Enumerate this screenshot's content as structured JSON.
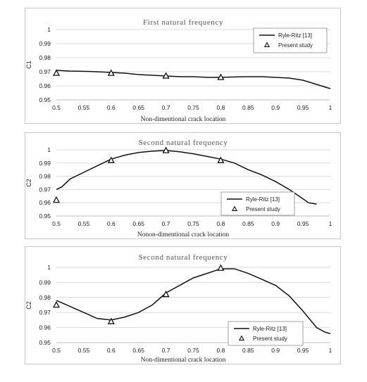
{
  "chart_data": [
    {
      "type": "line",
      "title": "First natural frequency",
      "xlabel": "Non-dimentional crack location",
      "ylabel": "C1",
      "xlim": [
        0.5,
        1
      ],
      "ylim": [
        0.95,
        1
      ],
      "xticks": [
        "0.5",
        "0.55",
        "0.6",
        "0.65",
        "0.7",
        "0.75",
        "0.8",
        "0.85",
        "0.9",
        "0.95",
        "1"
      ],
      "yticks": [
        "0.95",
        "0.96",
        "0.97",
        "0.98",
        "0.99",
        "1"
      ],
      "grid": "horizontal",
      "legend_position": "top-right",
      "series": [
        {
          "name": "Ryle-Ritz [13]",
          "style": "line",
          "x": [
            0.5,
            0.525,
            0.55,
            0.575,
            0.6,
            0.625,
            0.65,
            0.675,
            0.7,
            0.725,
            0.75,
            0.775,
            0.8,
            0.825,
            0.85,
            0.875,
            0.9,
            0.925,
            0.95,
            0.975,
            1.0
          ],
          "y": [
            0.971,
            0.9705,
            0.9703,
            0.97,
            0.9695,
            0.969,
            0.968,
            0.9675,
            0.967,
            0.9665,
            0.9665,
            0.966,
            0.966,
            0.9663,
            0.9665,
            0.9665,
            0.966,
            0.9655,
            0.964,
            0.961,
            0.958
          ]
        },
        {
          "name": "Present study",
          "style": "triangle-marker",
          "x": [
            0.5,
            0.6,
            0.7,
            0.8
          ],
          "y": [
            0.969,
            0.969,
            0.967,
            0.966
          ]
        }
      ]
    },
    {
      "type": "line",
      "title": "Second natural frequency",
      "xlabel": "Nonon-dimentional crack location",
      "ylabel": "C2",
      "xlim": [
        0.5,
        1
      ],
      "ylim": [
        0.95,
        1
      ],
      "xticks": [
        "0.5",
        "0.55",
        "0.6",
        "0.65",
        "0.7",
        "0.75",
        "0.8",
        "0.85",
        "0.9",
        "0.95",
        "1"
      ],
      "yticks": [
        "0.95",
        "0.96",
        "0.97",
        "0.98",
        "0.99",
        "1"
      ],
      "grid": "horizontal",
      "legend_position": "bottom-right",
      "series": [
        {
          "name": "Ryle-Ritz [13]",
          "style": "line",
          "x": [
            0.5,
            0.51,
            0.525,
            0.55,
            0.575,
            0.6,
            0.625,
            0.65,
            0.675,
            0.7,
            0.725,
            0.75,
            0.775,
            0.8,
            0.825,
            0.85,
            0.875,
            0.9,
            0.925,
            0.95,
            0.96,
            0.975
          ],
          "y": [
            0.97,
            0.972,
            0.978,
            0.983,
            0.988,
            0.993,
            0.996,
            0.998,
            0.999,
            0.9995,
            0.9985,
            0.997,
            0.995,
            0.993,
            0.99,
            0.985,
            0.981,
            0.976,
            0.97,
            0.963,
            0.96,
            0.959
          ]
        },
        {
          "name": "Present study",
          "style": "triangle-marker",
          "x": [
            0.5,
            0.6,
            0.7,
            0.8
          ],
          "y": [
            0.962,
            0.992,
            0.9995,
            0.992
          ]
        }
      ]
    },
    {
      "type": "line",
      "title": "Second natural frequency",
      "xlabel": "Non-dimentional crack location",
      "ylabel": "C2",
      "xlim": [
        0.5,
        1
      ],
      "ylim": [
        0.95,
        1
      ],
      "xticks": [
        "0.5",
        "0.55",
        "0.6",
        "0.65",
        "0.7",
        "0.75",
        "0.8",
        "0.85",
        "0.9",
        "0.95",
        "1"
      ],
      "yticks": [
        "0.95",
        "0.96",
        "0.97",
        "0.98",
        "0.99",
        "1"
      ],
      "grid": "horizontal",
      "legend_position": "bottom-right",
      "series": [
        {
          "name": "Ryle-Ritz [13]",
          "style": "line",
          "x": [
            0.5,
            0.525,
            0.55,
            0.575,
            0.6,
            0.625,
            0.65,
            0.675,
            0.7,
            0.725,
            0.75,
            0.775,
            0.8,
            0.825,
            0.85,
            0.875,
            0.9,
            0.925,
            0.95,
            0.975,
            0.99,
            1.0
          ],
          "y": [
            0.978,
            0.974,
            0.97,
            0.966,
            0.965,
            0.967,
            0.97,
            0.975,
            0.983,
            0.988,
            0.993,
            0.996,
            0.999,
            0.999,
            0.996,
            0.992,
            0.988,
            0.981,
            0.971,
            0.96,
            0.957,
            0.956
          ]
        },
        {
          "name": "Present study",
          "style": "triangle-marker",
          "x": [
            0.5,
            0.6,
            0.7,
            0.8
          ],
          "y": [
            0.975,
            0.964,
            0.982,
            0.9995
          ]
        }
      ]
    }
  ]
}
